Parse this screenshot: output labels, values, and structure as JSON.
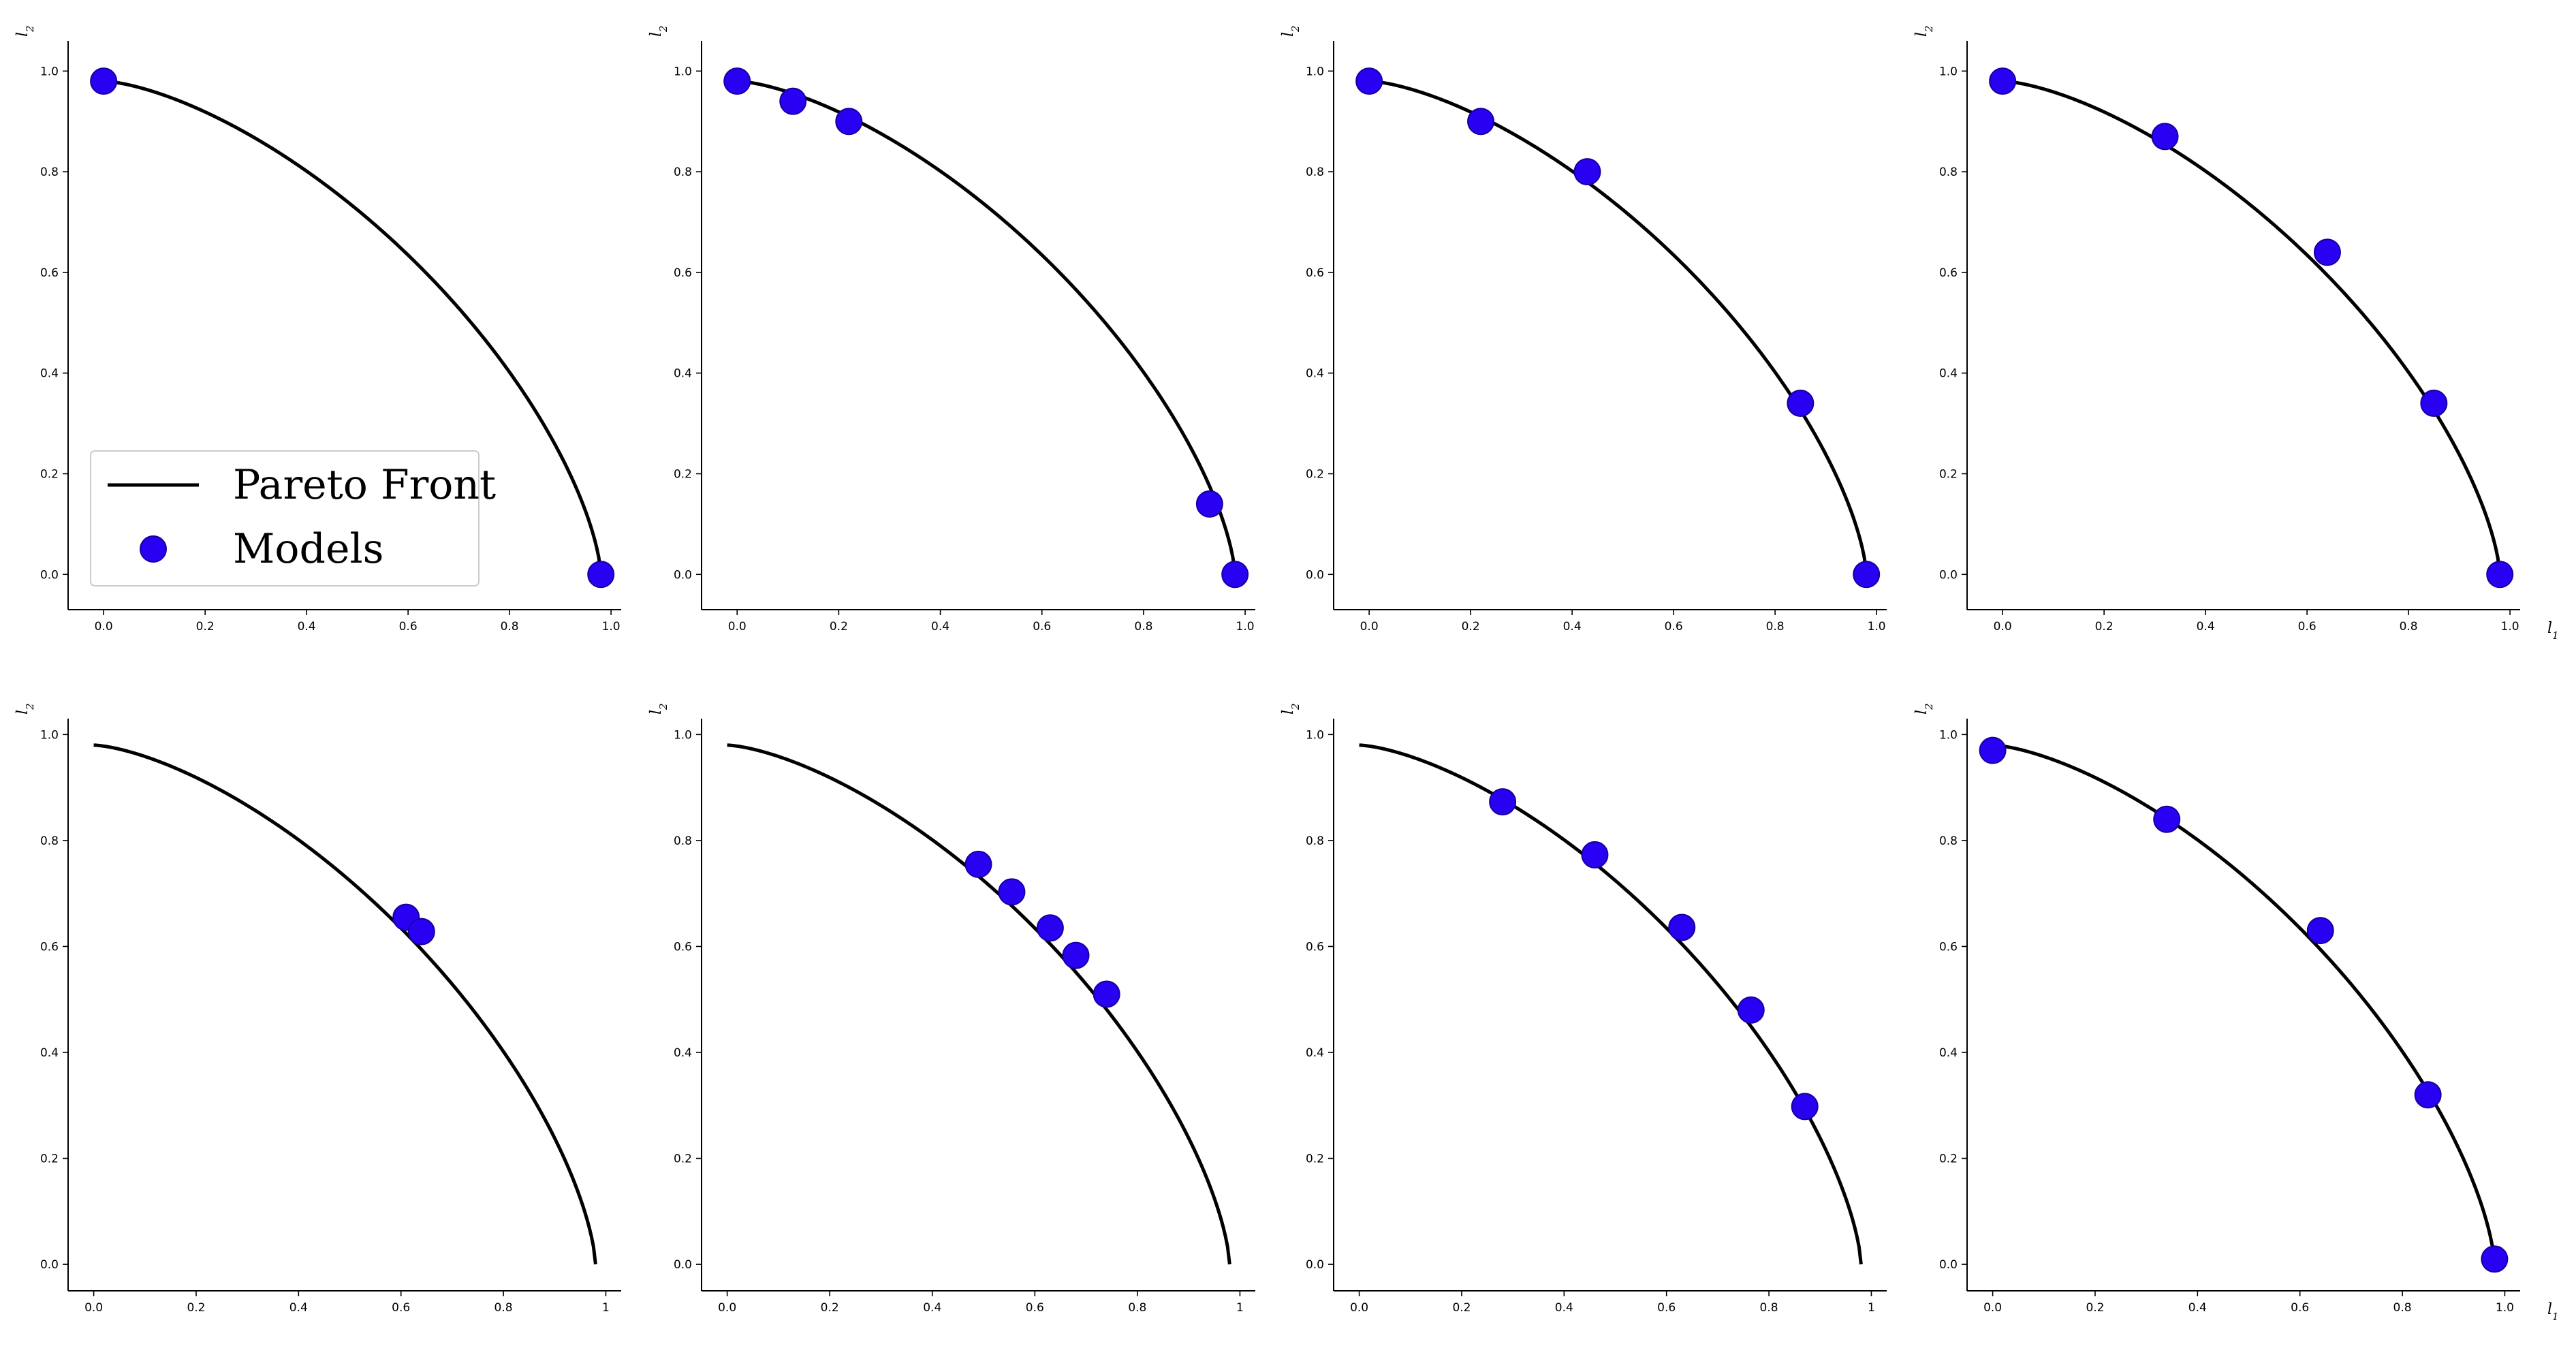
{
  "chart_data": [
    {
      "type": "scatter",
      "xlabel": "",
      "ylabel": "l2",
      "xticks": [
        "0.0",
        "0.2",
        "0.4",
        "0.6",
        "0.8",
        "1.0"
      ],
      "yticks": [
        "0.0",
        "0.2",
        "0.4",
        "0.6",
        "0.8",
        "1.0"
      ],
      "xlim": [
        -0.07,
        1.02
      ],
      "ylim": [
        -0.07,
        1.06
      ],
      "pareto_front": "r=0.98, exponent 1.5",
      "legend": {
        "placement": "lower-left",
        "entries": [
          "Pareto Front",
          "Models"
        ]
      },
      "points": [
        [
          0.0,
          0.98
        ],
        [
          0.98,
          0.0
        ]
      ]
    },
    {
      "type": "scatter",
      "xlabel": "",
      "ylabel": "l2",
      "xticks": [
        "0.0",
        "0.2",
        "0.4",
        "0.6",
        "0.8",
        "1.0"
      ],
      "yticks": [
        "0.0",
        "0.2",
        "0.4",
        "0.6",
        "0.8",
        "1.0"
      ],
      "xlim": [
        -0.07,
        1.02
      ],
      "ylim": [
        -0.07,
        1.06
      ],
      "points": [
        [
          0.0,
          0.98
        ],
        [
          0.11,
          0.94
        ],
        [
          0.22,
          0.9
        ],
        [
          0.93,
          0.14
        ],
        [
          0.98,
          0.0
        ]
      ]
    },
    {
      "type": "scatter",
      "xlabel": "",
      "ylabel": "l2",
      "xticks": [
        "0.0",
        "0.2",
        "0.4",
        "0.6",
        "0.8",
        "1.0"
      ],
      "yticks": [
        "0.0",
        "0.2",
        "0.4",
        "0.6",
        "0.8",
        "1.0"
      ],
      "xlim": [
        -0.07,
        1.02
      ],
      "ylim": [
        -0.07,
        1.06
      ],
      "points": [
        [
          0.0,
          0.98
        ],
        [
          0.22,
          0.9
        ],
        [
          0.43,
          0.8
        ],
        [
          0.85,
          0.34
        ],
        [
          0.98,
          0.0
        ]
      ]
    },
    {
      "type": "scatter",
      "xlabel": "l1",
      "ylabel": "l2",
      "xticks": [
        "0.0",
        "0.2",
        "0.4",
        "0.6",
        "0.8",
        "1.0"
      ],
      "yticks": [
        "0.0",
        "0.2",
        "0.4",
        "0.6",
        "0.8",
        "1.0"
      ],
      "xlim": [
        -0.07,
        1.02
      ],
      "ylim": [
        -0.07,
        1.06
      ],
      "points": [
        [
          0.0,
          0.98
        ],
        [
          0.32,
          0.87
        ],
        [
          0.64,
          0.64
        ],
        [
          0.85,
          0.34
        ],
        [
          0.98,
          0.0
        ]
      ]
    },
    {
      "type": "scatter",
      "xlabel": "",
      "ylabel": "l2",
      "xticks": [
        "0.0",
        "0.2",
        "0.4",
        "0.6",
        "0.8",
        "1"
      ],
      "yticks": [
        "0.0",
        "0.2",
        "0.4",
        "0.6",
        "0.8",
        "1.0"
      ],
      "xlim": [
        -0.05,
        1.03
      ],
      "ylim": [
        -0.05,
        1.03
      ],
      "points": [
        [
          0.61,
          0.655
        ],
        [
          0.64,
          0.628
        ]
      ]
    },
    {
      "type": "scatter",
      "xlabel": "",
      "ylabel": "l2",
      "xticks": [
        "0.0",
        "0.2",
        "0.4",
        "0.6",
        "0.8",
        "1"
      ],
      "yticks": [
        "0.0",
        "0.2",
        "0.4",
        "0.6",
        "0.8",
        "1.0"
      ],
      "xlim": [
        -0.05,
        1.03
      ],
      "ylim": [
        -0.05,
        1.03
      ],
      "points": [
        [
          0.49,
          0.755
        ],
        [
          0.555,
          0.703
        ],
        [
          0.63,
          0.635
        ],
        [
          0.68,
          0.583
        ],
        [
          0.74,
          0.51
        ]
      ]
    },
    {
      "type": "scatter",
      "xlabel": "",
      "ylabel": "l2",
      "xticks": [
        "0.0",
        "0.2",
        "0.4",
        "0.6",
        "0.8",
        "1"
      ],
      "yticks": [
        "0.0",
        "0.2",
        "0.4",
        "0.6",
        "0.8",
        "1.0"
      ],
      "xlim": [
        -0.05,
        1.03
      ],
      "ylim": [
        -0.05,
        1.03
      ],
      "points": [
        [
          0.28,
          0.873
        ],
        [
          0.46,
          0.773
        ],
        [
          0.63,
          0.636
        ],
        [
          0.765,
          0.48
        ],
        [
          0.87,
          0.298
        ]
      ]
    },
    {
      "type": "scatter",
      "xlabel": "l1",
      "ylabel": "l2",
      "xticks": [
        "0.0",
        "0.2",
        "0.4",
        "0.6",
        "0.8",
        "1.0"
      ],
      "yticks": [
        "0.0",
        "0.2",
        "0.4",
        "0.6",
        "0.8",
        "1.0"
      ],
      "xlim": [
        -0.05,
        1.03
      ],
      "ylim": [
        -0.05,
        1.03
      ],
      "points": [
        [
          0.0,
          0.97
        ],
        [
          0.34,
          0.84
        ],
        [
          0.64,
          0.63
        ],
        [
          0.85,
          0.32
        ],
        [
          0.98,
          0.01
        ]
      ]
    }
  ],
  "style": {
    "line_color": "#000000",
    "marker_color": "#2a00f2",
    "marker_edge": "#1400a0"
  }
}
